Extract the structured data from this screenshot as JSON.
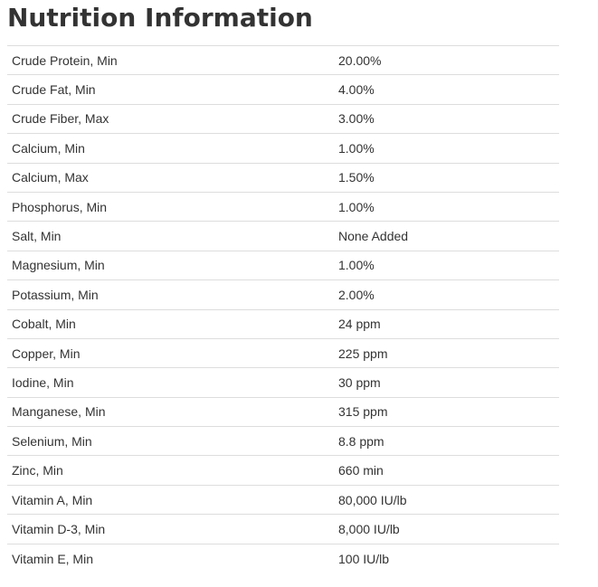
{
  "title": "Nutrition Information",
  "rows": [
    {
      "label": "Crude Protein, Min",
      "value": "20.00%"
    },
    {
      "label": "Crude Fat, Min",
      "value": "4.00%"
    },
    {
      "label": "Crude Fiber, Max",
      "value": "3.00%"
    },
    {
      "label": "Calcium, Min",
      "value": "1.00%"
    },
    {
      "label": "Calcium, Max",
      "value": "1.50%"
    },
    {
      "label": "Phosphorus, Min",
      "value": "1.00%"
    },
    {
      "label": "Salt, Min",
      "value": "None Added"
    },
    {
      "label": "Magnesium, Min",
      "value": "1.00%"
    },
    {
      "label": "Potassium, Min",
      "value": "2.00%"
    },
    {
      "label": "Cobalt, Min",
      "value": "24 ppm"
    },
    {
      "label": "Copper, Min",
      "value": "225 ppm"
    },
    {
      "label": "Iodine, Min",
      "value": "30 ppm"
    },
    {
      "label": "Manganese, Min",
      "value": "315 ppm"
    },
    {
      "label": "Selenium, Min",
      "value": "8.8 ppm"
    },
    {
      "label": "Zinc, Min",
      "value": "660 min"
    },
    {
      "label": "Vitamin A, Min",
      "value": "80,000 IU/lb"
    },
    {
      "label": "Vitamin D-3, Min",
      "value": "8,000 IU/lb"
    },
    {
      "label": "Vitamin E, Min",
      "value": "100 IU/lb"
    }
  ]
}
